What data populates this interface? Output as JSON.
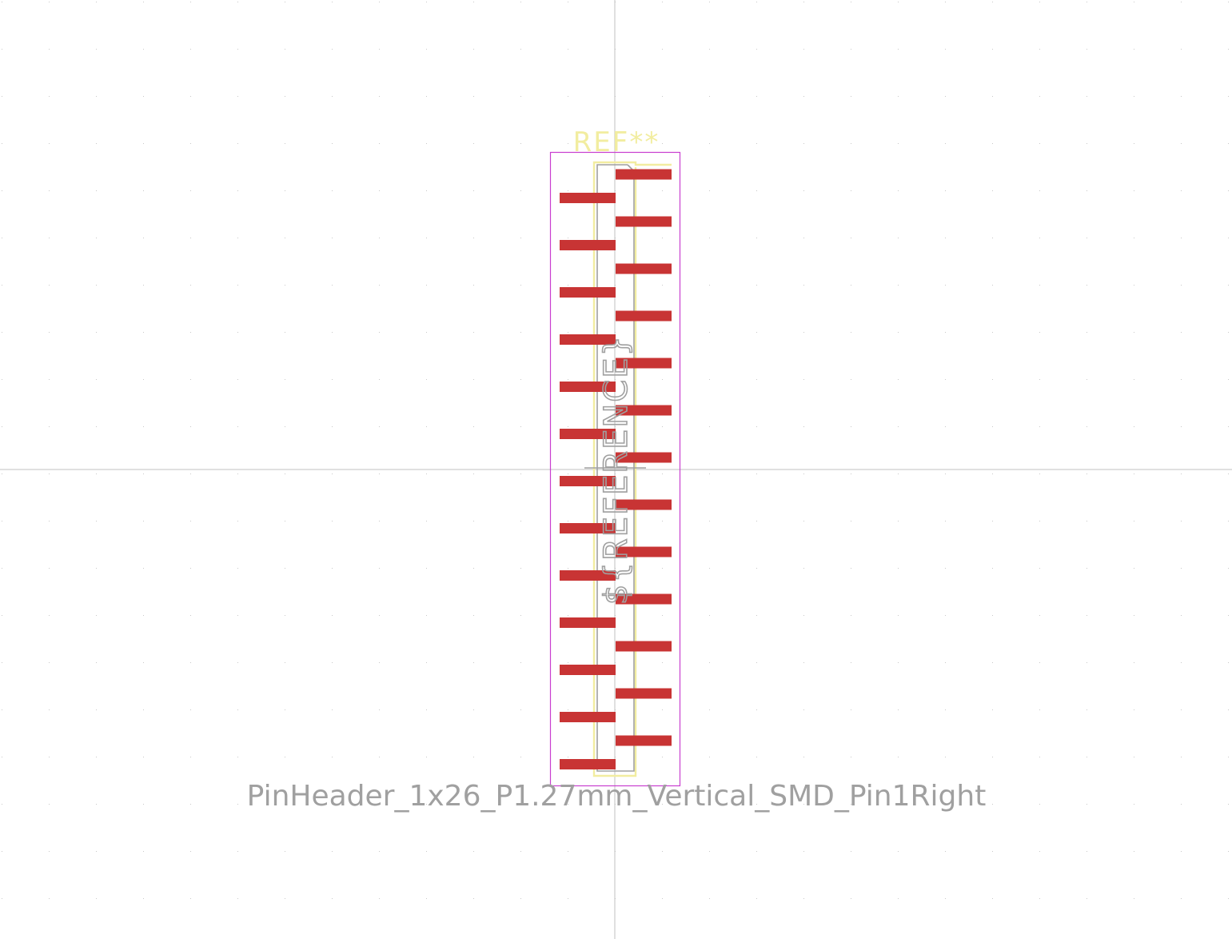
{
  "footprint": {
    "reference": "REF**",
    "reference_placeholder": "${REFERENCE}",
    "value": "PinHeader_1x26_P1.27mm_Vertical_SMD_Pin1Right",
    "pin_count": 26,
    "pitch": "1.27mm",
    "pin1_side": "right"
  },
  "colors": {
    "background": "#ffffff",
    "grid_dot": "#c8c8c8",
    "crosshair": "#c0c0c0",
    "pad": "#c83434",
    "courtyard": "#c83ed0",
    "silkscreen": "#f2eda0",
    "fab_outline": "#a0a0a0",
    "ref_text": "#f2eda0",
    "value_text": "#a0a0a0",
    "fab_text": "#a0a0a0"
  }
}
